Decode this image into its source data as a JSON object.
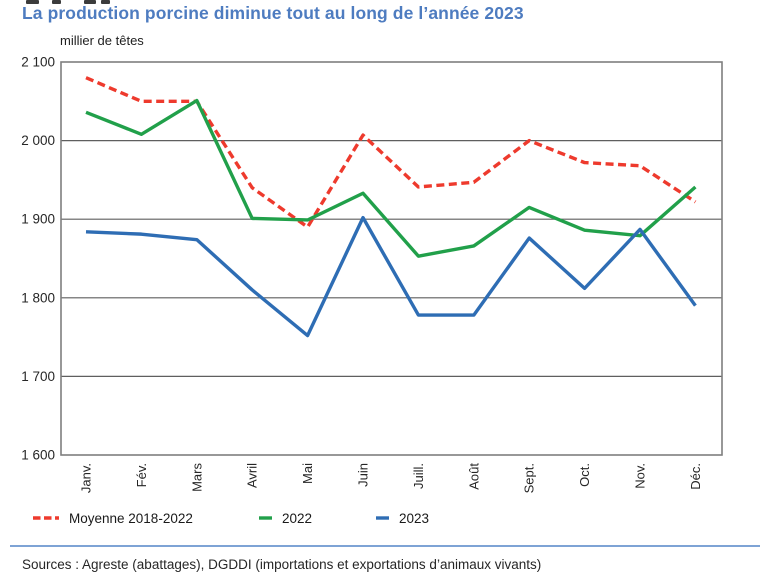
{
  "chart_data": {
    "type": "line",
    "title": "La production porcine diminue tout au long de l’année 2023",
    "unit_label": "millier de têtes",
    "categories": [
      "Janv.",
      "Fév.",
      "Mars",
      "Avril",
      "Mai",
      "Juin",
      "Juill.",
      "Août",
      "Sept.",
      "Oct.",
      "Nov.",
      "Déc."
    ],
    "series": [
      {
        "name": "Moyenne 2018-2022",
        "style": "dashed",
        "color": "#ee3a2d",
        "values": [
          2080,
          2050,
          2050,
          1940,
          1890,
          2007,
          1941,
          1947,
          2000,
          1972,
          1968,
          1922
        ]
      },
      {
        "name": "2022",
        "style": "solid",
        "color": "#21a04a",
        "values": [
          2036,
          2008,
          2051,
          1901,
          1899,
          1933,
          1853,
          1866,
          1915,
          1886,
          1879,
          1941
        ]
      },
      {
        "name": "2023",
        "style": "solid",
        "color": "#2e6db4",
        "values": [
          1884,
          1881,
          1874,
          1810,
          1752,
          1902,
          1778,
          1778,
          1876,
          1812,
          1887,
          1790
        ]
      }
    ],
    "ylim": [
      1600,
      2100
    ],
    "ytick_step": 100,
    "ytick_labels": [
      "1 600",
      "1 700",
      "1 800",
      "1 900",
      "2 000",
      "2 100"
    ],
    "grid": true,
    "legend_position": "bottom",
    "axis_color": "#7f7f7f",
    "gridline_color": "#5f5f5f",
    "label_color": "#262626",
    "title_color": "#4e7cc0"
  },
  "footer": {
    "sources": "Sources : Agreste (abattages), DGDDI (importations et exportations d’animaux vivants)"
  }
}
